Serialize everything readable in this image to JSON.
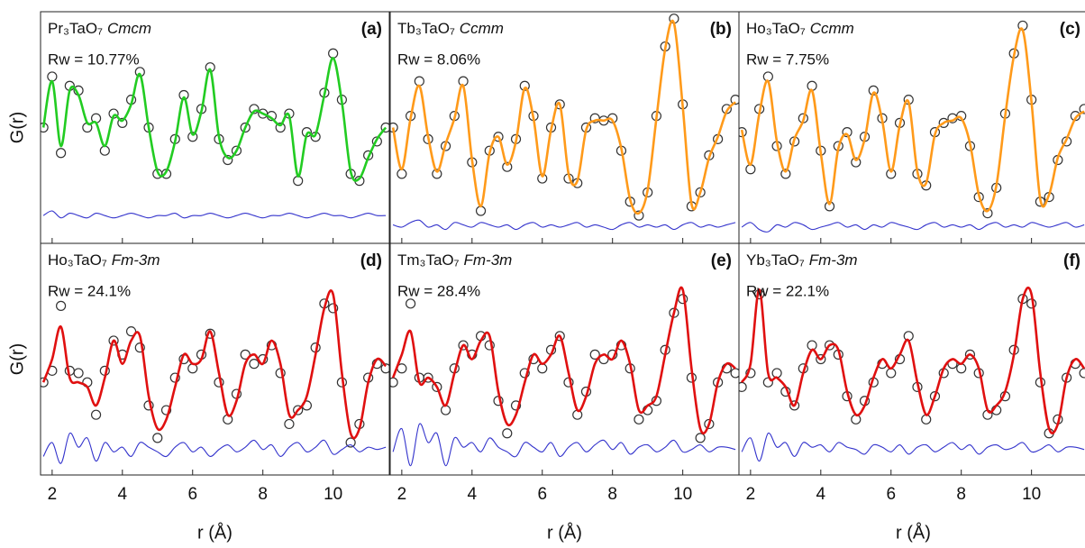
{
  "chart_data": [
    {
      "type": "line",
      "panel_label": "(a)",
      "formula": "Pr₃TaO₇",
      "space_group": "Cmcm",
      "rw": "Rw = 10.77%",
      "ylabel": "G(r)",
      "x": [
        1.75,
        2,
        2.25,
        2.5,
        2.75,
        3,
        3.25,
        3.5,
        3.75,
        4,
        4.25,
        4.5,
        4.75,
        5,
        5.25,
        5.5,
        5.75,
        6,
        6.25,
        6.5,
        6.75,
        7,
        7.25,
        7.5,
        7.75,
        8,
        8.25,
        8.5,
        8.75,
        9,
        9.25,
        9.5,
        9.75,
        10,
        10.25,
        10.5,
        10.75,
        11,
        11.25,
        11.5
      ],
      "series": [
        {
          "color": "#333333",
          "marker": "o",
          "values": [
            50,
            72,
            39,
            68,
            66,
            50,
            54,
            40,
            56,
            52,
            62,
            74,
            50,
            30,
            30,
            45,
            64,
            46,
            58,
            76,
            45,
            36,
            40,
            50,
            58,
            56,
            55,
            50,
            56,
            27,
            48,
            46,
            65,
            82,
            62,
            30,
            27,
            38,
            44,
            50
          ]
        },
        {
          "color": "#22cc22",
          "values": [
            50,
            70,
            42,
            66,
            64,
            52,
            52,
            42,
            55,
            53,
            60,
            73,
            50,
            31,
            31,
            44,
            63,
            47,
            57,
            75,
            46,
            37,
            40,
            50,
            57,
            56,
            54,
            51,
            55,
            29,
            47,
            47,
            64,
            80,
            61,
            31,
            28,
            37,
            45,
            50
          ]
        },
        {
          "color": "#3333cc",
          "values": [
            12,
            14,
            11,
            13,
            12,
            11,
            13,
            12,
            11,
            12,
            13,
            12,
            11,
            12,
            12,
            13,
            11,
            12,
            12,
            13,
            12,
            11,
            12,
            13,
            12,
            11,
            12,
            12,
            13,
            12,
            11,
            12,
            13,
            12,
            12,
            11,
            12,
            13,
            12,
            12
          ]
        }
      ],
      "xlim": [
        1.67,
        11.6
      ],
      "ylim": [
        0,
        100
      ],
      "xticks": [
        2,
        4,
        6,
        8,
        10
      ]
    },
    {
      "type": "line",
      "panel_label": "(b)",
      "formula": "Tb₃TaO₇",
      "space_group": "Ccmm",
      "rw": "Rw = 8.06%",
      "x": [
        1.75,
        2,
        2.25,
        2.5,
        2.75,
        3,
        3.25,
        3.5,
        3.75,
        4,
        4.25,
        4.5,
        4.75,
        5,
        5.25,
        5.5,
        5.75,
        6,
        6.25,
        6.5,
        6.75,
        7,
        7.25,
        7.5,
        7.75,
        8,
        8.25,
        8.5,
        8.75,
        9,
        9.25,
        9.5,
        9.75,
        10,
        10.25,
        10.5,
        10.75,
        11,
        11.25,
        11.5
      ],
      "series": [
        {
          "color": "#333333",
          "marker": "o",
          "values": [
            50,
            30,
            55,
            70,
            45,
            30,
            42,
            55,
            70,
            35,
            14,
            40,
            46,
            33,
            45,
            68,
            55,
            28,
            50,
            60,
            28,
            26,
            50,
            54,
            53,
            54,
            40,
            18,
            12,
            22,
            55,
            85,
            97,
            60,
            16,
            22,
            38,
            45,
            58,
            62
          ]
        },
        {
          "color": "#ff9a1a",
          "values": [
            50,
            32,
            54,
            68,
            46,
            31,
            43,
            54,
            68,
            36,
            16,
            39,
            46,
            34,
            44,
            67,
            54,
            29,
            49,
            60,
            30,
            27,
            49,
            53,
            53,
            53,
            41,
            19,
            13,
            23,
            54,
            84,
            95,
            59,
            17,
            22,
            37,
            46,
            57,
            61
          ]
        },
        {
          "color": "#3333cc",
          "values": [
            8,
            7,
            9,
            10,
            7,
            8,
            6,
            9,
            8,
            7,
            9,
            8,
            7,
            8,
            6,
            8,
            9,
            7,
            8,
            7,
            8,
            9,
            7,
            8,
            7,
            6,
            8,
            9,
            7,
            8,
            7,
            8,
            6,
            8,
            9,
            7,
            8,
            7,
            8,
            9
          ]
        }
      ],
      "xlim": [
        1.67,
        11.6
      ],
      "ylim": [
        0,
        100
      ],
      "xticks": [
        2,
        4,
        6,
        8,
        10
      ]
    },
    {
      "type": "line",
      "panel_label": "(c)",
      "formula": "Ho₃TaO₇",
      "space_group": "Ccmm",
      "rw": "Rw = 7.75%",
      "x": [
        1.75,
        2,
        2.25,
        2.5,
        2.75,
        3,
        3.25,
        3.5,
        3.75,
        4,
        4.25,
        4.5,
        4.75,
        5,
        5.25,
        5.5,
        5.75,
        6,
        6.25,
        6.5,
        6.75,
        7,
        7.25,
        7.5,
        7.75,
        8,
        8.25,
        8.5,
        8.75,
        9,
        9.25,
        9.5,
        9.75,
        10,
        10.25,
        10.5,
        10.75,
        11,
        11.25,
        11.5
      ],
      "series": [
        {
          "color": "#333333",
          "marker": "o",
          "values": [
            48,
            32,
            58,
            72,
            42,
            30,
            44,
            54,
            68,
            40,
            16,
            42,
            48,
            35,
            46,
            66,
            54,
            30,
            52,
            62,
            30,
            25,
            48,
            52,
            54,
            55,
            42,
            20,
            13,
            24,
            56,
            82,
            94,
            62,
            18,
            20,
            36,
            44,
            55,
            58
          ]
        },
        {
          "color": "#ff9a1a",
          "values": [
            49,
            34,
            56,
            70,
            44,
            31,
            45,
            53,
            66,
            39,
            17,
            41,
            47,
            36,
            45,
            65,
            53,
            31,
            51,
            61,
            31,
            26,
            47,
            52,
            53,
            54,
            43,
            21,
            14,
            25,
            55,
            81,
            92,
            61,
            19,
            21,
            37,
            45,
            54,
            57
          ]
        },
        {
          "color": "#3333cc",
          "values": [
            7,
            9,
            6,
            5,
            8,
            7,
            9,
            8,
            6,
            7,
            8,
            9,
            7,
            8,
            6,
            8,
            7,
            9,
            8,
            7,
            6,
            8,
            9,
            7,
            8,
            7,
            8,
            6,
            8,
            9,
            7,
            8,
            7,
            9,
            8,
            7,
            8,
            9,
            7,
            8
          ]
        }
      ],
      "xlim": [
        1.67,
        11.6
      ],
      "ylim": [
        0,
        100
      ],
      "xticks": [
        2,
        4,
        6,
        8,
        10
      ]
    },
    {
      "type": "line",
      "panel_label": "(d)",
      "formula": "Ho₃TaO₇",
      "space_group": "Fm-3m",
      "rw": "Rw = 24.1%",
      "ylabel": "G(r)",
      "xlabel": "r (Å)",
      "x": [
        1.75,
        2,
        2.25,
        2.5,
        2.75,
        3,
        3.25,
        3.5,
        3.75,
        4,
        4.25,
        4.5,
        4.75,
        5,
        5.25,
        5.5,
        5.75,
        6,
        6.25,
        6.5,
        6.75,
        7,
        7.25,
        7.5,
        7.75,
        8,
        8.25,
        8.5,
        8.75,
        9,
        9.25,
        9.5,
        9.75,
        10,
        10.25,
        10.5,
        10.75,
        11,
        11.25,
        11.5
      ],
      "series": [
        {
          "color": "#333333",
          "marker": "o",
          "values": [
            40,
            45,
            73,
            45,
            44,
            40,
            26,
            45,
            58,
            52,
            62,
            55,
            30,
            16,
            28,
            42,
            50,
            46,
            52,
            61,
            40,
            24,
            35,
            52,
            48,
            50,
            56,
            44,
            22,
            28,
            30,
            55,
            74,
            72,
            40,
            14,
            22,
            42,
            48,
            46
          ]
        },
        {
          "color": "#e01010",
          "values": [
            40,
            50,
            64,
            42,
            40,
            38,
            30,
            42,
            58,
            48,
            58,
            60,
            34,
            20,
            24,
            38,
            52,
            48,
            50,
            62,
            44,
            26,
            32,
            48,
            52,
            48,
            58,
            48,
            26,
            28,
            34,
            52,
            72,
            78,
            44,
            18,
            20,
            40,
            50,
            47
          ]
        },
        {
          "color": "#3333cc",
          "values": [
            8,
            14,
            5,
            18,
            12,
            16,
            6,
            14,
            10,
            12,
            8,
            14,
            12,
            10,
            8,
            12,
            14,
            10,
            12,
            8,
            11,
            13,
            10,
            12,
            15,
            11,
            13,
            8,
            12,
            14,
            10,
            12,
            15,
            9,
            11,
            13,
            10,
            12,
            11,
            12
          ]
        }
      ],
      "xlim": [
        1.67,
        11.6
      ],
      "ylim": [
        0,
        100
      ],
      "xticks": [
        2,
        4,
        6,
        8,
        10
      ]
    },
    {
      "type": "line",
      "panel_label": "(e)",
      "formula": "Tm₃TaO₇",
      "space_group": "Fm-3m",
      "rw": "Rw = 28.4%",
      "xlabel": "r (Å)",
      "x": [
        1.75,
        2,
        2.25,
        2.5,
        2.75,
        3,
        3.25,
        3.5,
        3.75,
        4,
        4.25,
        4.5,
        4.75,
        5,
        5.25,
        5.5,
        5.75,
        6,
        6.25,
        6.5,
        6.75,
        7,
        7.25,
        7.5,
        7.75,
        8,
        8.25,
        8.5,
        8.75,
        9,
        9.25,
        9.5,
        9.75,
        10,
        10.25,
        10.5,
        10.75,
        11,
        11.25,
        11.5
      ],
      "series": [
        {
          "color": "#333333",
          "marker": "o",
          "values": [
            40,
            46,
            74,
            42,
            42,
            38,
            28,
            46,
            56,
            52,
            60,
            56,
            32,
            18,
            30,
            44,
            50,
            46,
            54,
            60,
            40,
            26,
            36,
            52,
            50,
            52,
            56,
            46,
            24,
            28,
            32,
            54,
            70,
            76,
            42,
            16,
            22,
            40,
            46,
            44
          ]
        },
        {
          "color": "#e01010",
          "values": [
            42,
            52,
            62,
            40,
            42,
            38,
            30,
            44,
            56,
            50,
            58,
            60,
            36,
            22,
            26,
            40,
            52,
            48,
            52,
            60,
            44,
            28,
            34,
            48,
            52,
            50,
            58,
            48,
            28,
            30,
            34,
            52,
            70,
            80,
            46,
            20,
            22,
            40,
            48,
            46
          ]
        },
        {
          "color": "#3333cc",
          "values": [
            10,
            20,
            4,
            22,
            14,
            18,
            4,
            16,
            12,
            14,
            10,
            16,
            12,
            10,
            8,
            14,
            12,
            10,
            14,
            8,
            12,
            14,
            10,
            13,
            15,
            11,
            14,
            9,
            12,
            13,
            10,
            12,
            15,
            10,
            11,
            13,
            10,
            12,
            12,
            11
          ]
        }
      ],
      "xlim": [
        1.67,
        11.6
      ],
      "ylim": [
        0,
        100
      ],
      "xticks": [
        2,
        4,
        6,
        8,
        10
      ]
    },
    {
      "type": "line",
      "panel_label": "(f)",
      "formula": "Yb₃TaO₇",
      "space_group": "Fm-3m",
      "rw": "Rw = 22.1%",
      "xlabel": "r (Å)",
      "x": [
        1.75,
        2,
        2.25,
        2.5,
        2.75,
        3,
        3.25,
        3.5,
        3.75,
        4,
        4.25,
        4.5,
        4.75,
        5,
        5.25,
        5.5,
        5.75,
        6,
        6.25,
        6.5,
        6.75,
        7,
        7.25,
        7.5,
        7.75,
        8,
        8.25,
        8.5,
        8.75,
        9,
        9.25,
        9.5,
        9.75,
        10,
        10.25,
        10.5,
        10.75,
        11,
        11.25,
        11.5
      ],
      "series": [
        {
          "color": "#333333",
          "marker": "o",
          "values": [
            38,
            44,
            78,
            40,
            44,
            36,
            30,
            46,
            56,
            50,
            56,
            52,
            34,
            24,
            32,
            40,
            48,
            44,
            50,
            60,
            38,
            24,
            34,
            44,
            48,
            46,
            52,
            44,
            26,
            28,
            34,
            54,
            76,
            74,
            40,
            18,
            24,
            42,
            48,
            44
          ]
        },
        {
          "color": "#e01010",
          "values": [
            40,
            48,
            80,
            44,
            42,
            38,
            30,
            44,
            54,
            50,
            56,
            54,
            36,
            26,
            30,
            42,
            50,
            46,
            52,
            58,
            40,
            26,
            34,
            46,
            50,
            48,
            52,
            46,
            28,
            30,
            36,
            52,
            76,
            78,
            44,
            20,
            22,
            42,
            50,
            46
          ]
        },
        {
          "color": "#3333cc",
          "values": [
            10,
            16,
            6,
            18,
            12,
            14,
            8,
            14,
            12,
            13,
            10,
            14,
            12,
            11,
            9,
            13,
            12,
            10,
            13,
            9,
            12,
            13,
            10,
            12,
            14,
            11,
            13,
            9,
            12,
            13,
            11,
            12,
            14,
            10,
            11,
            13,
            10,
            12,
            12,
            11
          ]
        }
      ],
      "xlim": [
        1.67,
        11.6
      ],
      "ylim": [
        0,
        100
      ],
      "xticks": [
        2,
        4,
        6,
        8,
        10
      ]
    }
  ]
}
